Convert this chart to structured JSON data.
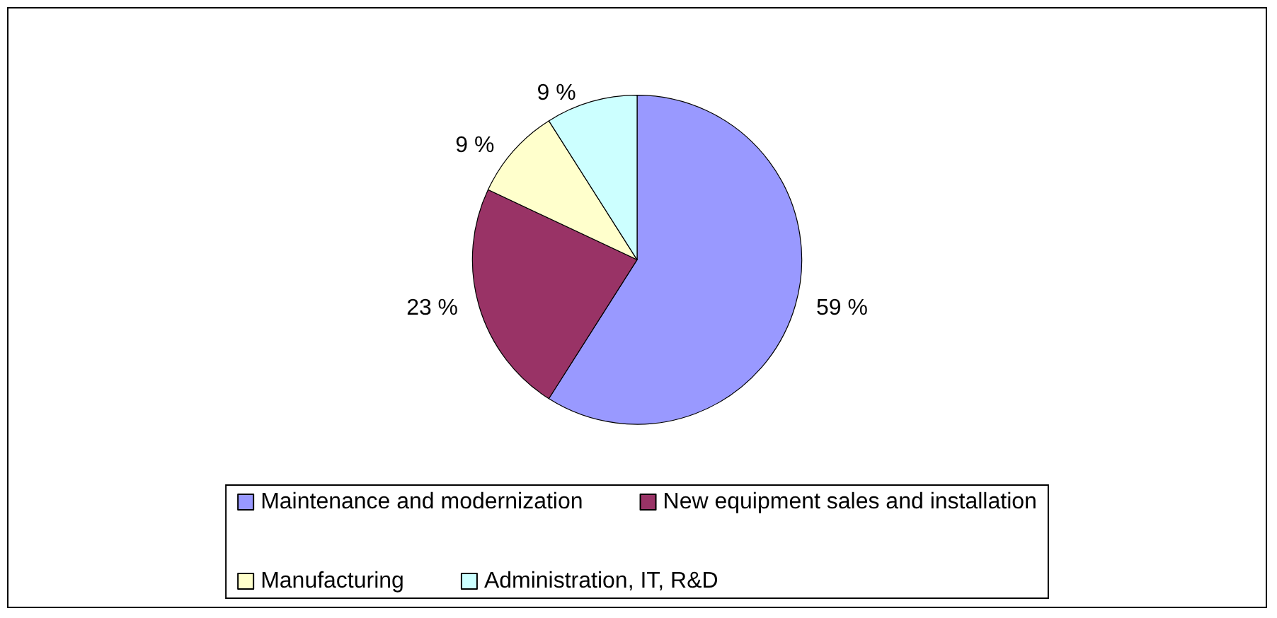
{
  "chart_data": {
    "type": "pie",
    "categories": [
      "Maintenance and modernization",
      "New equipment sales and installation",
      "Manufacturing",
      "Administration, IT, R&D"
    ],
    "values": [
      59,
      23,
      9,
      9
    ],
    "colors": [
      "#9999ff",
      "#993366",
      "#ffffcc",
      "#ccffff"
    ],
    "value_labels": [
      "59 %",
      "23 %",
      "9 %",
      "9 %"
    ],
    "legend": "bottom"
  }
}
